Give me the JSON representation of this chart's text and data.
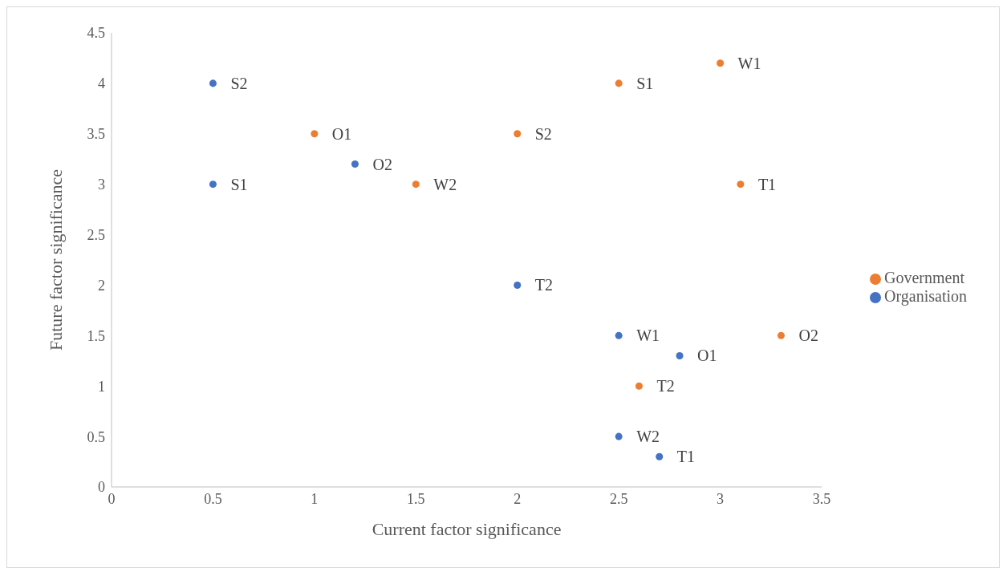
{
  "chart_data": {
    "type": "scatter",
    "xlabel": "Current factor significance",
    "ylabel": "Future factor significance",
    "xlim": [
      0,
      3.5
    ],
    "xticks": [
      0,
      0.5,
      1,
      1.5,
      2,
      2.5,
      3,
      3.5
    ],
    "ylim": [
      0,
      4.5
    ],
    "yticks": [
      0,
      0.5,
      1,
      1.5,
      2,
      2.5,
      3,
      3.5,
      4,
      4.5
    ],
    "grid": false,
    "legend": "right",
    "marker": "circle",
    "series": [
      {
        "name": "Organisation",
        "color": "#4472c4",
        "x": [
          0.5,
          0.5,
          1.2,
          2,
          2.5,
          2.8,
          2.5,
          2.7
        ],
        "values": [
          4,
          3,
          3.2,
          2,
          1.5,
          1.3,
          0.5,
          0.3
        ]
      },
      {
        "name": "Government",
        "color": "#ed7d31",
        "x": [
          1,
          1.5,
          2,
          2.5,
          3,
          3.1,
          3.3,
          2.6
        ],
        "values": [
          3.5,
          3,
          3.5,
          4,
          4.2,
          3,
          1.5,
          1
        ]
      }
    ],
    "annotations": [
      {
        "text": "S2",
        "x": 0.5,
        "y": 4
      },
      {
        "text": "S1",
        "x": 0.5,
        "y": 3
      },
      {
        "text": "O2",
        "x": 1.2,
        "y": 3.2
      },
      {
        "text": "T2",
        "x": 2,
        "y": 2
      },
      {
        "text": "W1",
        "x": 2.5,
        "y": 1.5
      },
      {
        "text": "O1",
        "x": 2.8,
        "y": 1.3
      },
      {
        "text": "W2",
        "x": 2.5,
        "y": 0.5
      },
      {
        "text": "T1",
        "x": 2.7,
        "y": 0.3
      },
      {
        "text": "O1",
        "x": 1,
        "y": 3.5
      },
      {
        "text": "W2",
        "x": 1.5,
        "y": 3
      },
      {
        "text": "S2",
        "x": 2,
        "y": 3.5
      },
      {
        "text": "S1",
        "x": 2.5,
        "y": 4
      },
      {
        "text": "W1",
        "x": 3,
        "y": 4.2
      },
      {
        "text": "T1",
        "x": 3.1,
        "y": 3
      },
      {
        "text": "O2",
        "x": 3.3,
        "y": 1.5
      },
      {
        "text": "T2",
        "x": 2.6,
        "y": 1
      }
    ]
  }
}
